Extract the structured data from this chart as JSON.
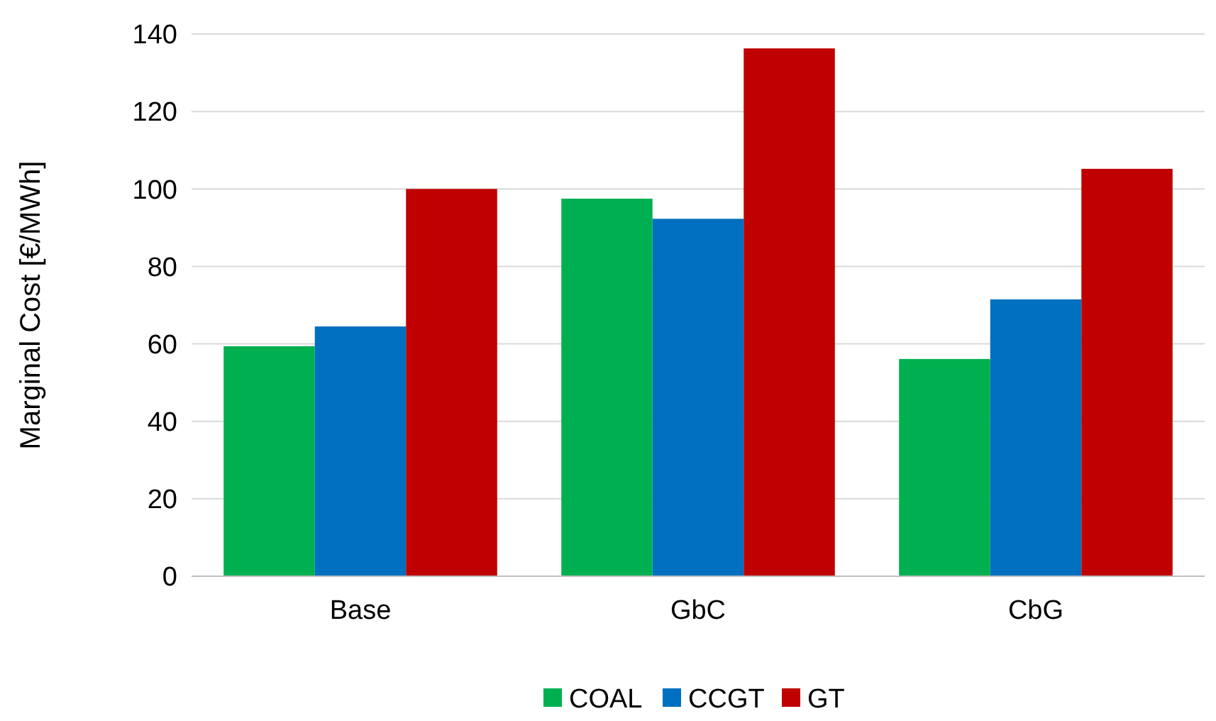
{
  "chart_data": {
    "type": "bar",
    "ylabel": "Marginal Cost [€/MWh]",
    "categories": [
      "Base",
      "GbC",
      "CbG"
    ],
    "series": [
      {
        "name": "COAL",
        "color": "#00b050",
        "values": [
          59.4,
          97.5,
          56.1
        ]
      },
      {
        "name": "CCGT",
        "color": "#0070c0",
        "values": [
          64.5,
          92.3,
          71.5
        ]
      },
      {
        "name": "GT",
        "color": "#c00000",
        "values": [
          100.0,
          136.3,
          105.2
        ]
      }
    ],
    "ylim": [
      0,
      140
    ],
    "yticks": [
      0,
      20,
      40,
      60,
      80,
      100,
      120,
      140
    ],
    "grid": "y",
    "legend": "bottom"
  }
}
